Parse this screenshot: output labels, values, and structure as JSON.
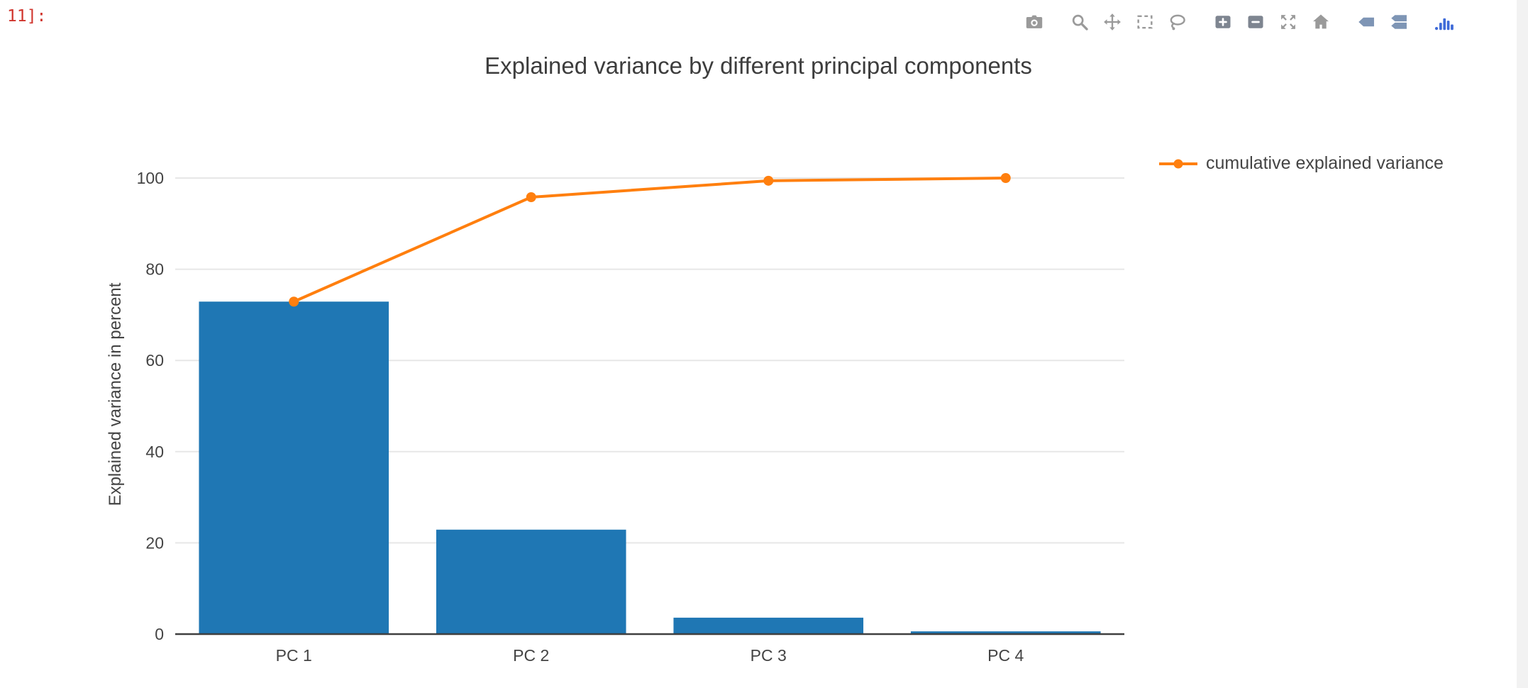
{
  "prompt": {
    "label": "11]:"
  },
  "modebar": {
    "groups": [
      [
        "camera"
      ],
      [
        "zoom",
        "pan",
        "box-select",
        "lasso"
      ],
      [
        "zoom-in",
        "zoom-out",
        "autoscale",
        "home"
      ],
      [
        "hover-closest",
        "hover-compare"
      ],
      [
        "plotly-logo"
      ]
    ]
  },
  "chart_data": {
    "type": "bar",
    "title": "Explained variance by different principal components",
    "categories": [
      "PC 1",
      "PC 2",
      "PC 3",
      "PC 4"
    ],
    "series": [
      {
        "name": "explained variance",
        "type": "bar",
        "color": "#1f77b4",
        "values": [
          72.9,
          22.9,
          3.6,
          0.6
        ],
        "in_legend": false
      },
      {
        "name": "cumulative explained variance",
        "type": "line",
        "color": "#ff7f0e",
        "values": [
          72.9,
          95.8,
          99.4,
          100.0
        ],
        "in_legend": true
      }
    ],
    "xlabel": "",
    "ylabel": "Explained variance in percent",
    "yticks": [
      0,
      20,
      40,
      60,
      80,
      100
    ],
    "ylim": [
      0,
      105
    ],
    "grid": true,
    "legend_position": "right",
    "background": "#ffffff",
    "gridline_color": "#e7e7e7",
    "axis_color": "#3f3f3f",
    "text_color": "#444444"
  }
}
